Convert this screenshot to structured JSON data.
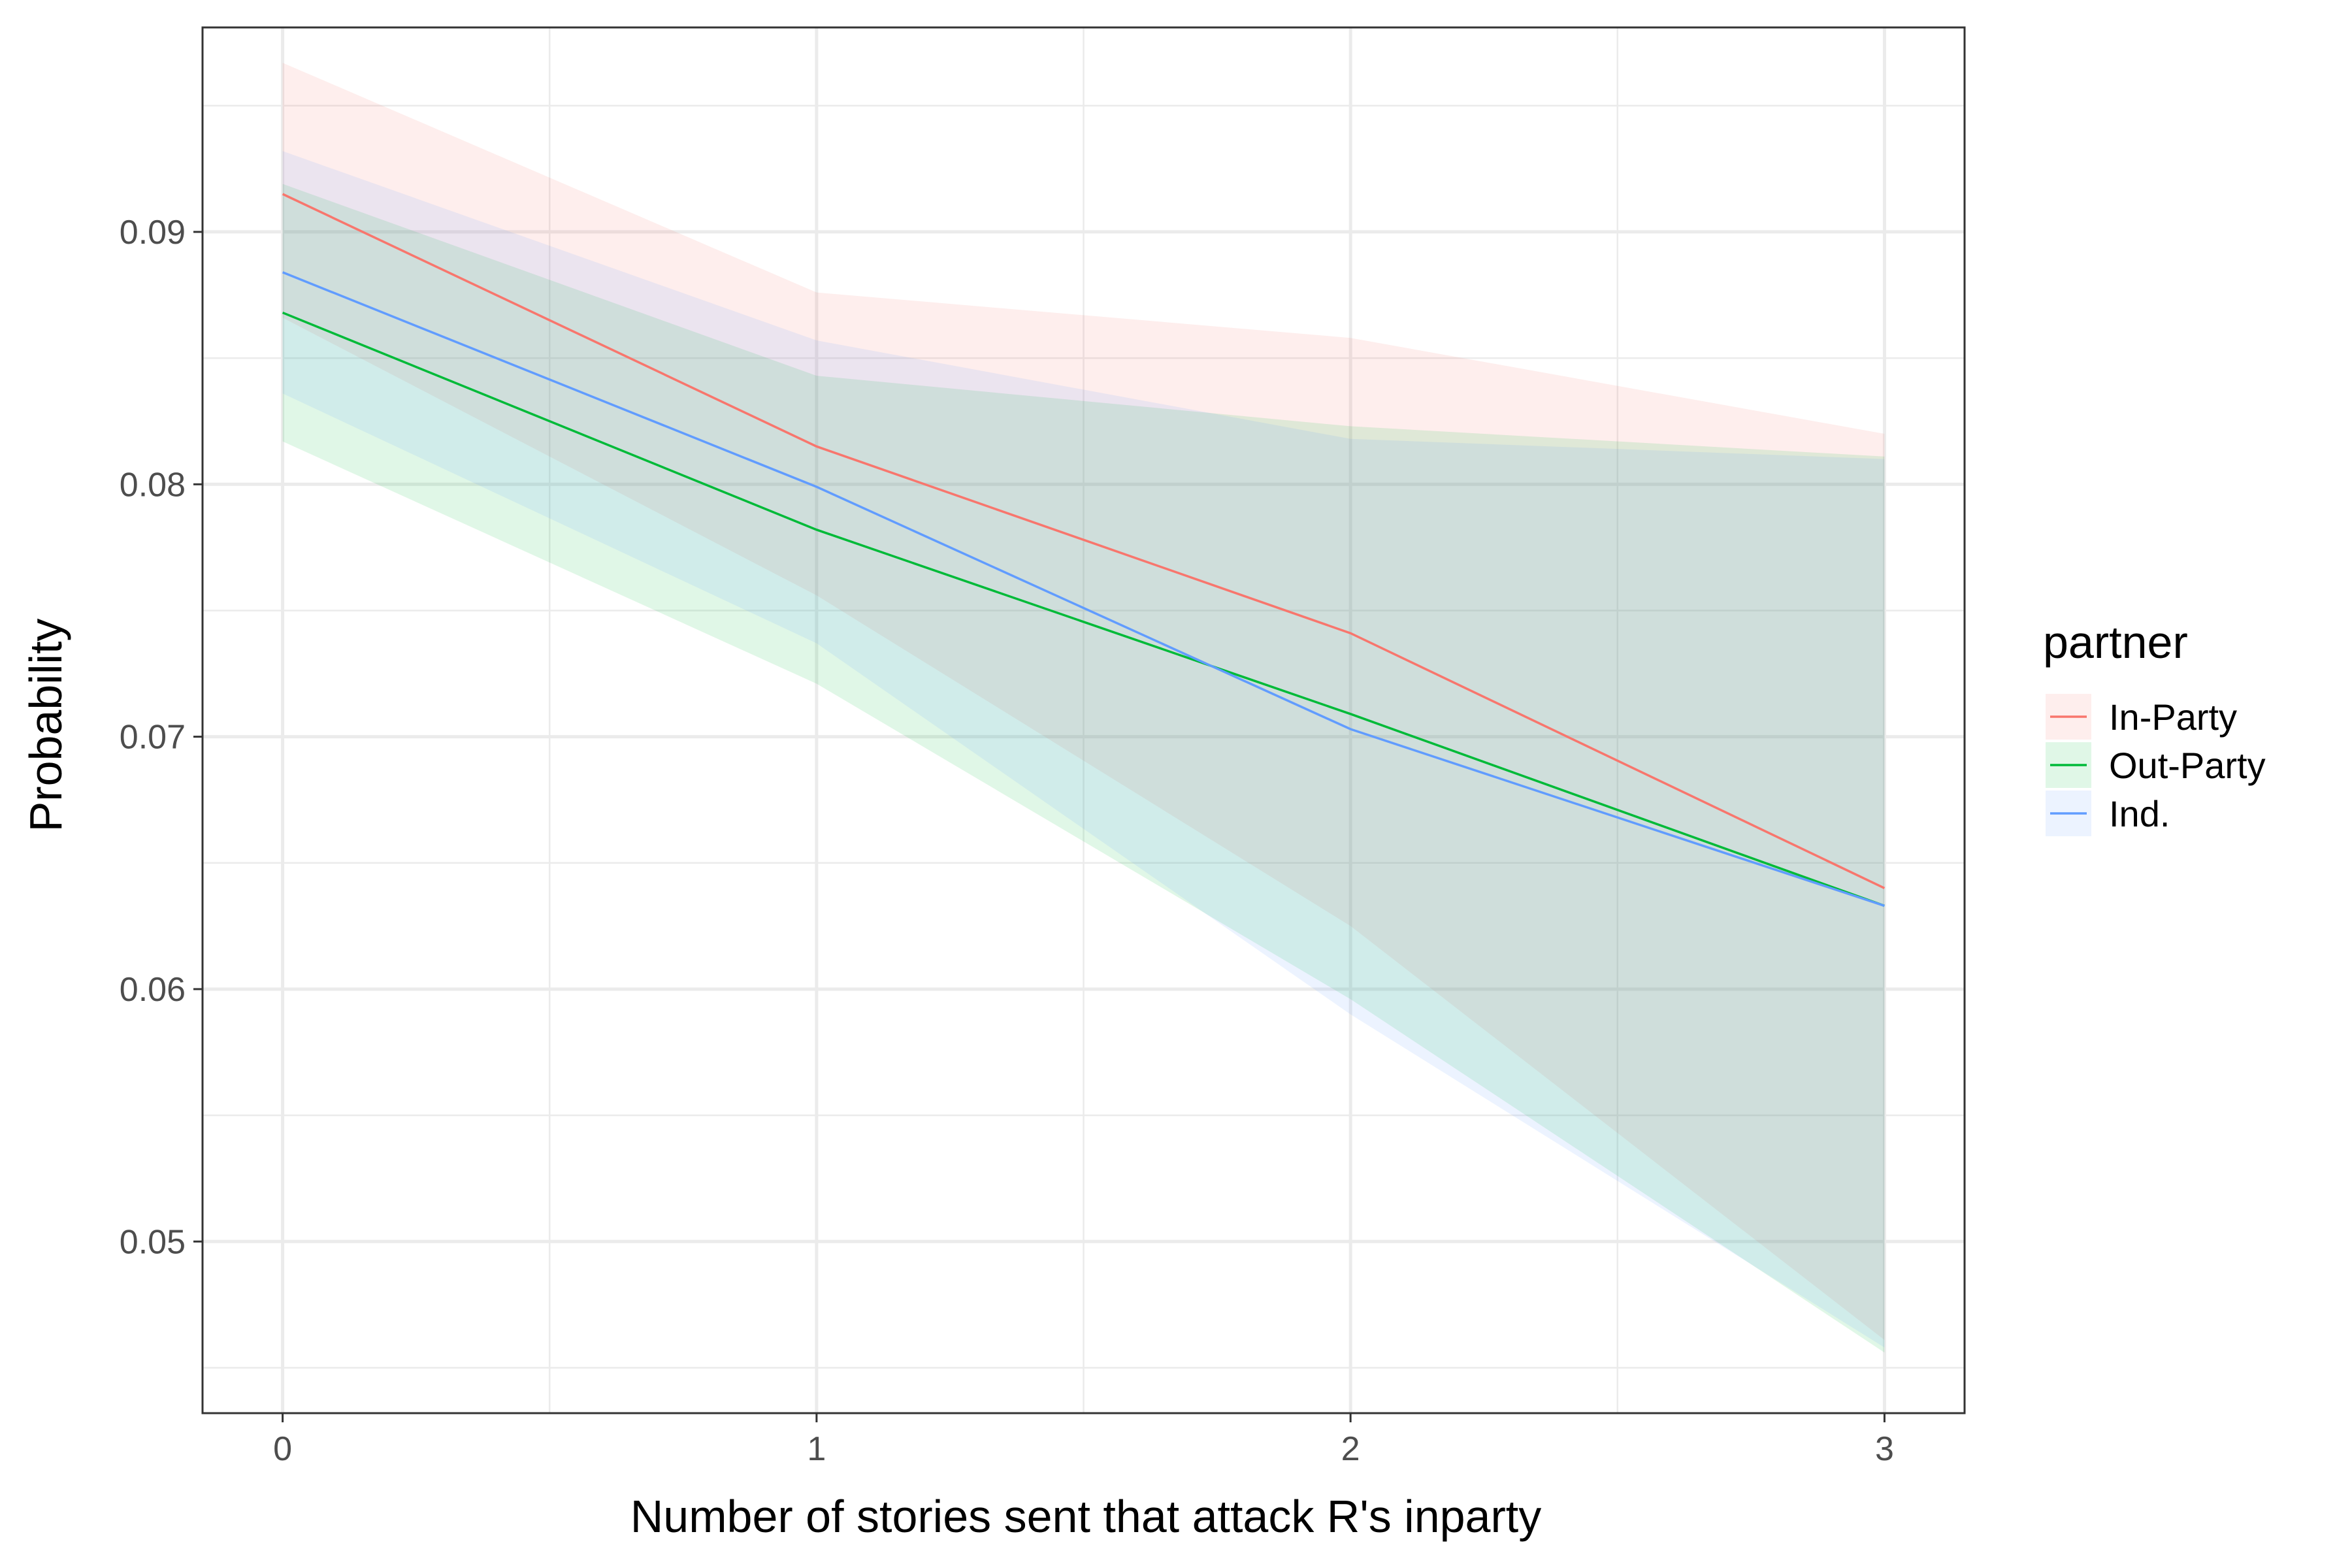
{
  "chart_data": {
    "type": "line",
    "title": "",
    "xlabel": "Number of stories sent that attack R's inparty",
    "ylabel": "Probability",
    "x": [
      0,
      1,
      2,
      3
    ],
    "xlim": [
      -0.15,
      3.15
    ],
    "ylim": [
      0.0432,
      0.0981
    ],
    "xticks": [
      0,
      1,
      2,
      3
    ],
    "xtick_labels": [
      "0",
      "1",
      "2",
      "3"
    ],
    "yticks": [
      0.05,
      0.06,
      0.07,
      0.08,
      0.09
    ],
    "ytick_labels": [
      "0.05",
      "0.06",
      "0.07",
      "0.08",
      "0.09"
    ],
    "grid": true,
    "legend": {
      "title": "partner",
      "placement": "right"
    },
    "series": [
      {
        "name": "In-Party",
        "color": "#F8766D",
        "values": [
          0.0915,
          0.0815,
          0.0741,
          0.064
        ],
        "lower": [
          0.0866,
          0.0756,
          0.0625,
          0.0461
        ],
        "upper": [
          0.0967,
          0.0876,
          0.0858,
          0.082
        ]
      },
      {
        "name": "Out-Party",
        "color": "#00BA38",
        "values": [
          0.0868,
          0.0782,
          0.0709,
          0.0633
        ],
        "lower": [
          0.0817,
          0.0721,
          0.0596,
          0.0456
        ],
        "upper": [
          0.0919,
          0.0843,
          0.0823,
          0.0811
        ]
      },
      {
        "name": "Ind.",
        "color": "#619CFF",
        "values": [
          0.0884,
          0.0799,
          0.0703,
          0.0633
        ],
        "lower": [
          0.0836,
          0.0737,
          0.059,
          0.0458
        ],
        "upper": [
          0.0932,
          0.0857,
          0.0818,
          0.081
        ]
      }
    ]
  }
}
